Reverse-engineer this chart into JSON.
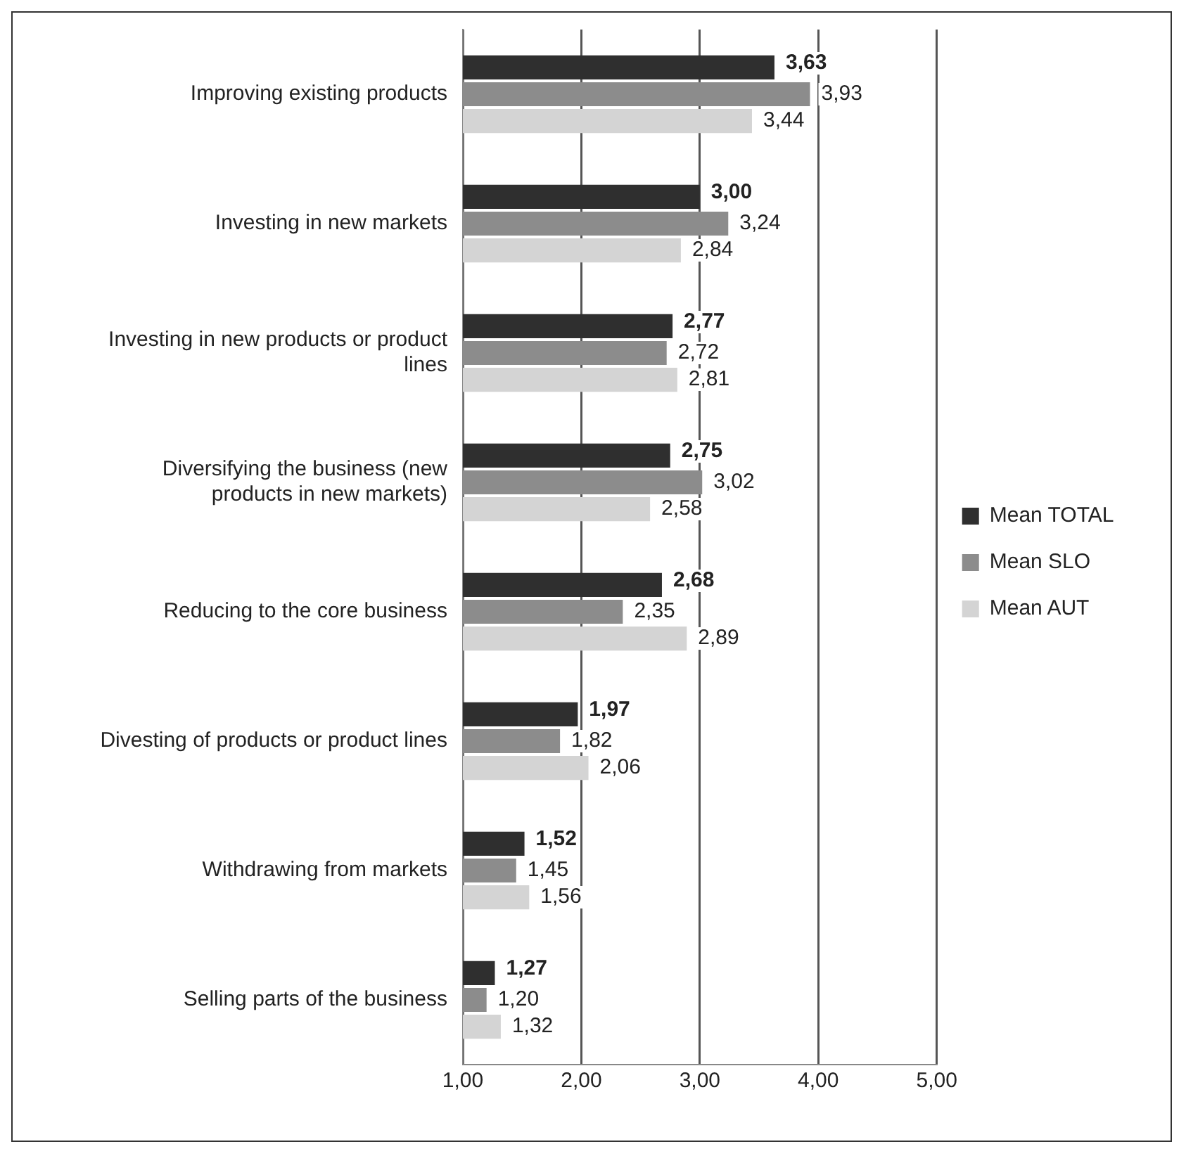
{
  "chart_data": {
    "type": "bar",
    "orientation": "horizontal",
    "categories": [
      "Improving existing products",
      "Investing in new markets",
      "Investing in new products or product lines",
      "Diversifying the business (new products in new markets)",
      "Reducing to the core business",
      "Divesting of products or product lines",
      "Withdrawing from markets",
      "Selling parts of the business"
    ],
    "series": [
      {
        "name": "Mean TOTAL",
        "color": "#2f2f2f",
        "values": [
          3.63,
          3.0,
          2.77,
          2.75,
          2.68,
          1.97,
          1.52,
          1.27
        ],
        "value_labels": [
          "3,63",
          "3,00",
          "2,77",
          "2,75",
          "2,68",
          "1,97",
          "1,52",
          "1,27"
        ]
      },
      {
        "name": "Mean SLO",
        "color": "#8c8c8c",
        "values": [
          3.93,
          3.24,
          2.72,
          3.02,
          2.35,
          1.82,
          1.45,
          1.2
        ],
        "value_labels": [
          "3,93",
          "3,24",
          "2,72",
          "3,02",
          "2,35",
          "1,82",
          "1,45",
          "1,20"
        ]
      },
      {
        "name": "Mean AUT",
        "color": "#d4d4d4",
        "values": [
          3.44,
          2.84,
          2.81,
          2.58,
          2.89,
          2.06,
          1.56,
          1.32
        ],
        "value_labels": [
          "3,44",
          "2,84",
          "2,81",
          "2,58",
          "2,89",
          "2,06",
          "1,56",
          "1,32"
        ]
      }
    ],
    "xlim": [
      1,
      5
    ],
    "xticks": [
      {
        "value": 1,
        "label": "1,00"
      },
      {
        "value": 2,
        "label": "2,00"
      },
      {
        "value": 3,
        "label": "3,00"
      },
      {
        "value": 4,
        "label": "4,00"
      },
      {
        "value": 5,
        "label": "5,00"
      }
    ],
    "grid": "x",
    "legend": "right"
  }
}
